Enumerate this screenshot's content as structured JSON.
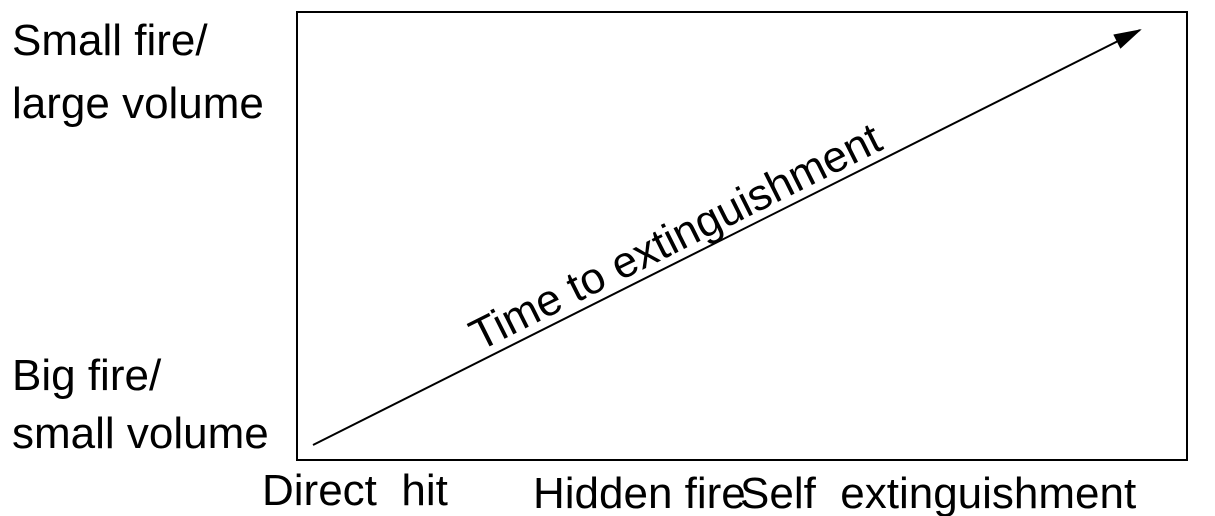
{
  "left_labels": {
    "top": [
      "Small fire/",
      "large volume"
    ],
    "bottom": [
      "Big fire/",
      "small volume"
    ]
  },
  "bottom_labels": [
    "Direct  hit",
    "Hidden fire",
    "Self  extinguishment"
  ],
  "arrow_label": "Time to extinguishment"
}
